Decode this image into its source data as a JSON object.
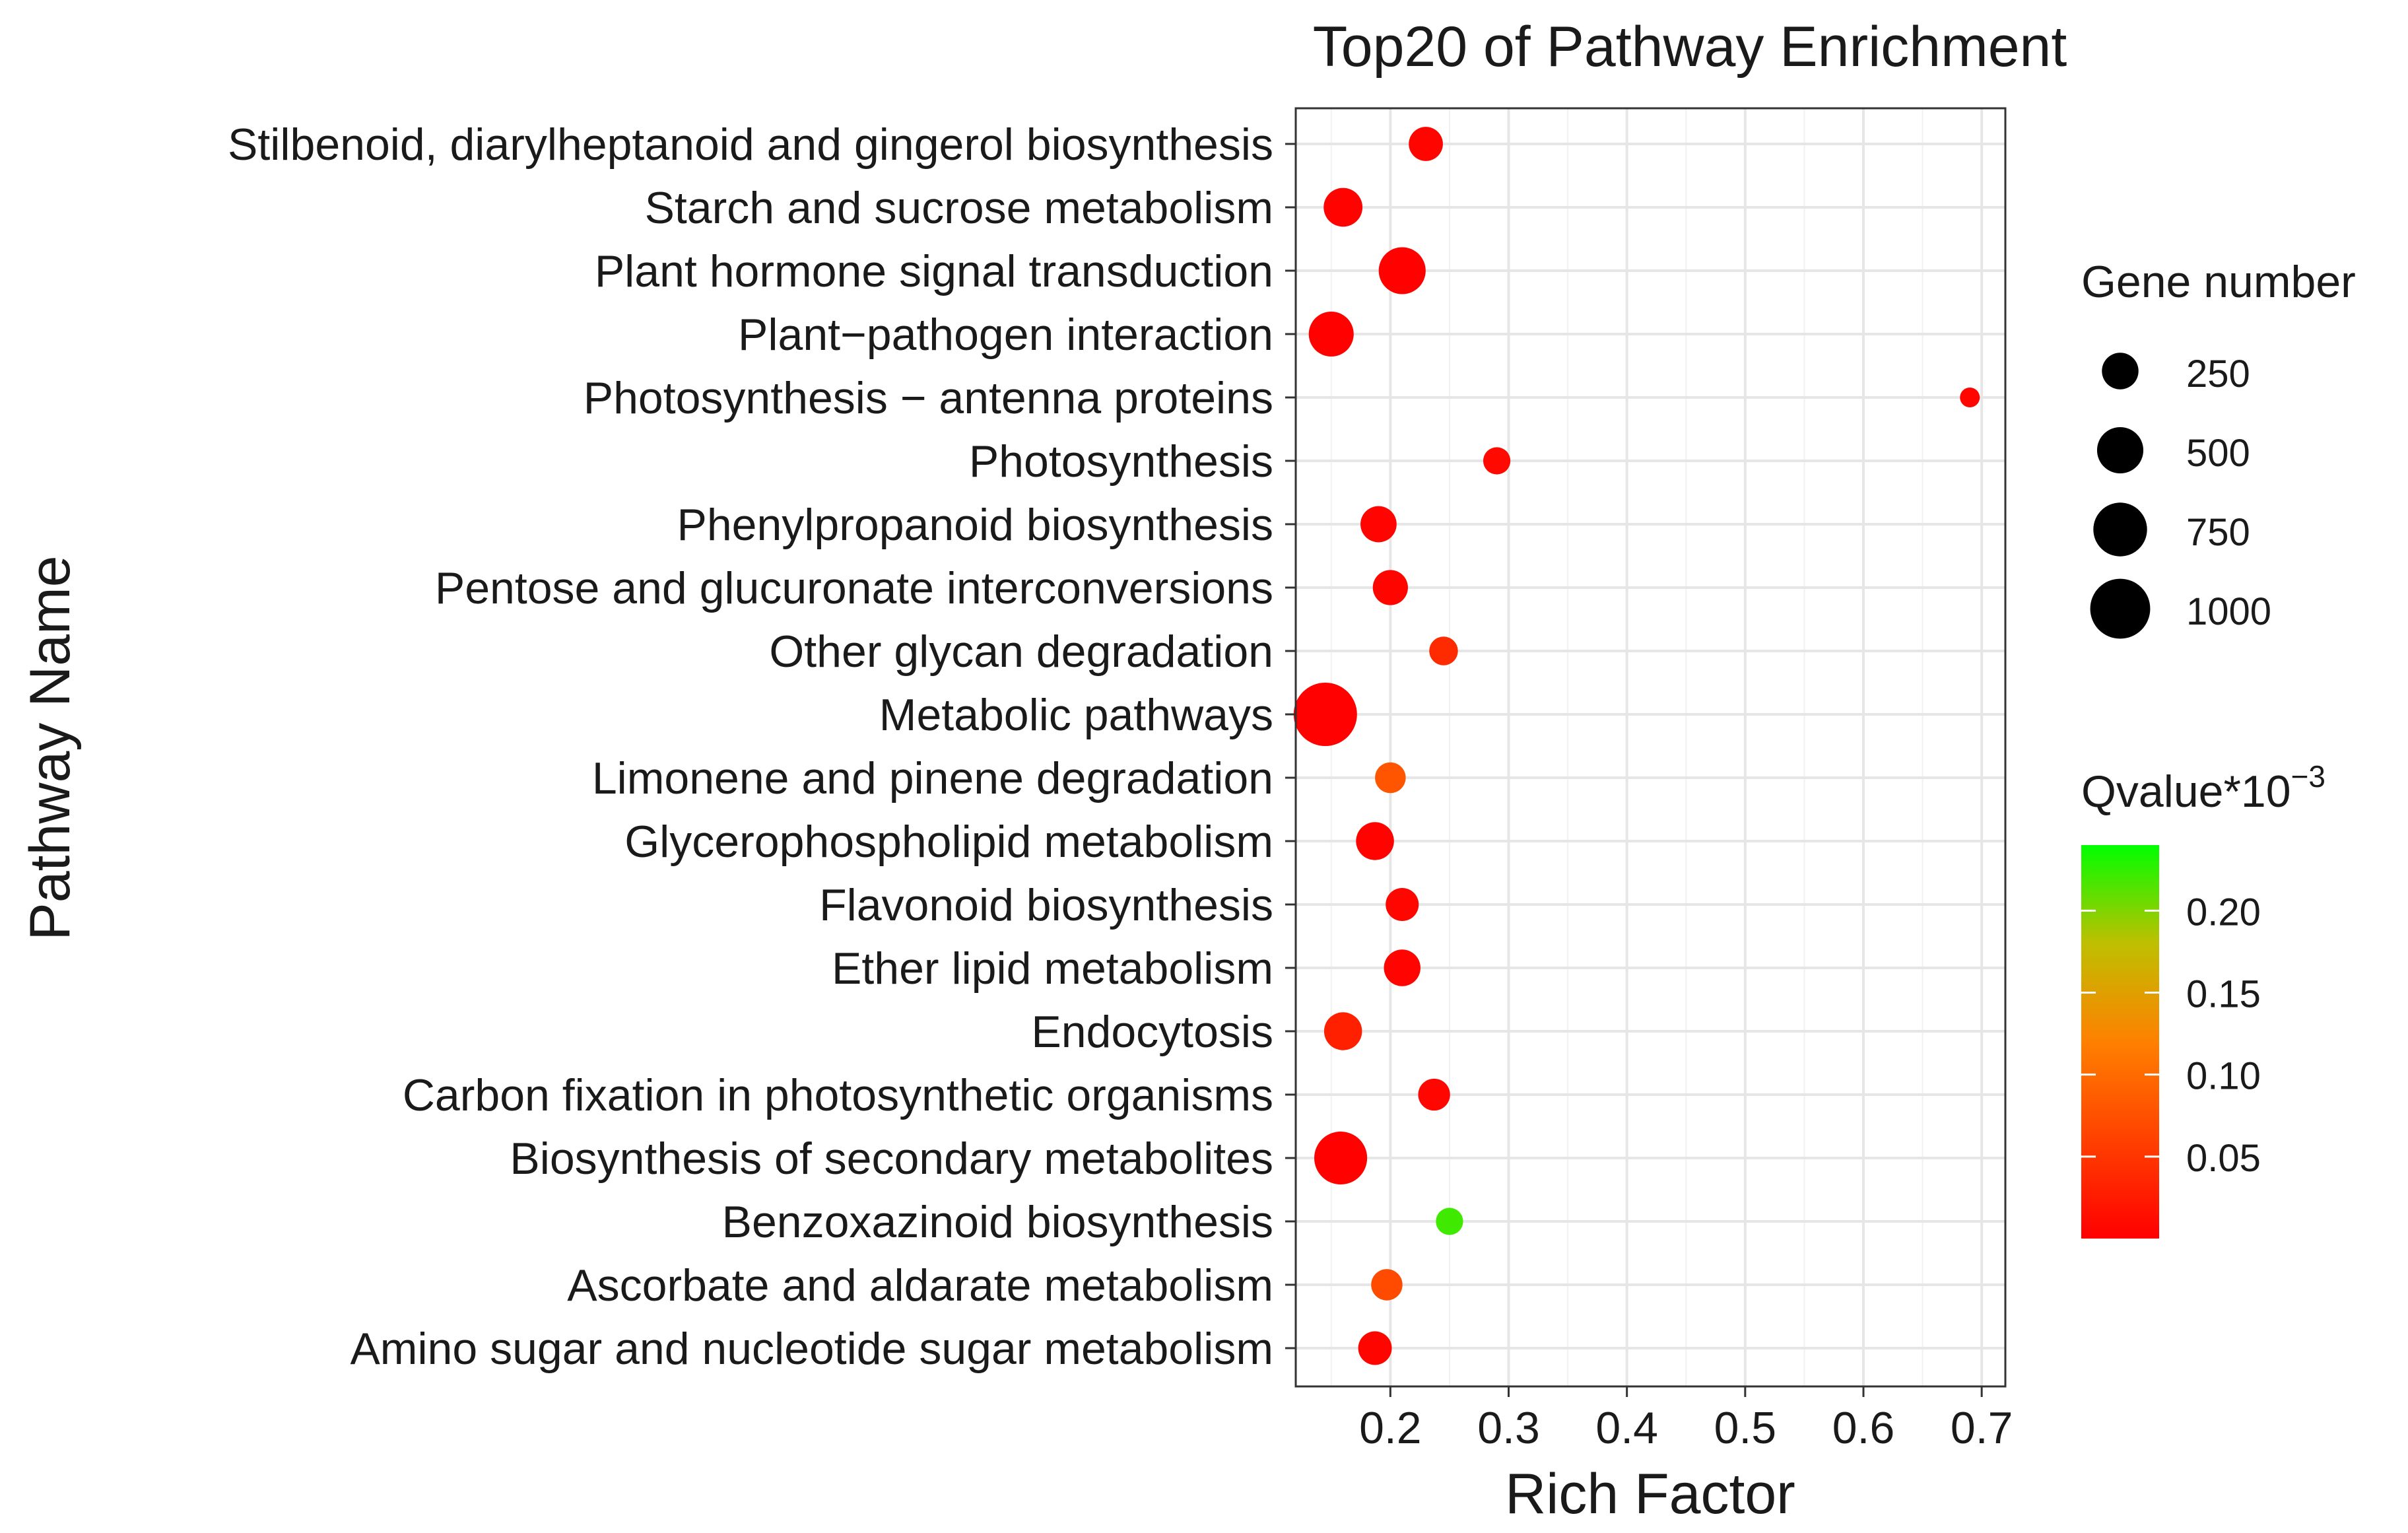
{
  "chart_data": {
    "type": "scatter",
    "title": "Top20 of Pathway Enrichment",
    "xlabel": "Rich Factor",
    "ylabel": "Pathway Name",
    "xlim": [
      0.12,
      0.72
    ],
    "xticks": [
      0.2,
      0.3,
      0.4,
      0.5,
      0.6,
      0.7
    ],
    "xtick_labels": [
      "0.2",
      "0.3",
      "0.4",
      "0.5",
      "0.6",
      "0.7"
    ],
    "grid": true,
    "points": [
      {
        "pathway": "Stilbenoid, diarylheptanoid and gingerol biosynthesis",
        "rich_factor": 0.23,
        "gene_number": 200,
        "qvalue": 0.005
      },
      {
        "pathway": "Starch and sucrose metabolism",
        "rich_factor": 0.16,
        "gene_number": 300,
        "qvalue": 0.003
      },
      {
        "pathway": "Plant hormone signal transduction",
        "rich_factor": 0.21,
        "gene_number": 520,
        "qvalue": 0.002
      },
      {
        "pathway": "Plant−pathogen interaction",
        "rich_factor": 0.15,
        "gene_number": 460,
        "qvalue": 0.002
      },
      {
        "pathway": "Photosynthesis − antenna proteins",
        "rich_factor": 0.69,
        "gene_number": 20,
        "qvalue": 0.006
      },
      {
        "pathway": "Photosynthesis",
        "rich_factor": 0.29,
        "gene_number": 90,
        "qvalue": 0.008
      },
      {
        "pathway": "Phenylpropanoid biosynthesis",
        "rich_factor": 0.19,
        "gene_number": 240,
        "qvalue": 0.004
      },
      {
        "pathway": "Pentose and glucuronate interconversions",
        "rich_factor": 0.2,
        "gene_number": 220,
        "qvalue": 0.005
      },
      {
        "pathway": "Other glycan degradation",
        "rich_factor": 0.245,
        "gene_number": 110,
        "qvalue": 0.04
      },
      {
        "pathway": "Metabolic pathways",
        "rich_factor": 0.145,
        "gene_number": 1150,
        "qvalue": 0.001
      },
      {
        "pathway": "Limonene and pinene degradation",
        "rich_factor": 0.2,
        "gene_number": 140,
        "qvalue": 0.08
      },
      {
        "pathway": "Glycerophospholipid metabolism",
        "rich_factor": 0.187,
        "gene_number": 280,
        "qvalue": 0.003
      },
      {
        "pathway": "Flavonoid biosynthesis",
        "rich_factor": 0.21,
        "gene_number": 180,
        "qvalue": 0.006
      },
      {
        "pathway": "Ether lipid metabolism",
        "rich_factor": 0.21,
        "gene_number": 250,
        "qvalue": 0.004
      },
      {
        "pathway": "Endocytosis",
        "rich_factor": 0.16,
        "gene_number": 280,
        "qvalue": 0.03
      },
      {
        "pathway": "Carbon fixation in photosynthetic organisms",
        "rich_factor": 0.237,
        "gene_number": 160,
        "qvalue": 0.007
      },
      {
        "pathway": "Biosynthesis of secondary metabolites",
        "rich_factor": 0.158,
        "gene_number": 720,
        "qvalue": 0.002
      },
      {
        "pathway": "Benzoxazinoid biosynthesis",
        "rich_factor": 0.25,
        "gene_number": 90,
        "qvalue": 0.22
      },
      {
        "pathway": "Ascorbate and aldarate metabolism",
        "rich_factor": 0.197,
        "gene_number": 150,
        "qvalue": 0.07
      },
      {
        "pathway": "Amino sugar and nucleotide sugar metabolism",
        "rich_factor": 0.187,
        "gene_number": 190,
        "qvalue": 0.005
      }
    ],
    "size_legend": {
      "title": "Gene number",
      "values": [
        250,
        500,
        750,
        1000
      ],
      "labels": [
        "250",
        "500",
        "750",
        "1000"
      ]
    },
    "color_legend": {
      "title_base": "Qvalue*10",
      "title_exponent": "−3",
      "range": [
        0.0,
        0.24
      ],
      "ticks": [
        0.05,
        0.1,
        0.15,
        0.2
      ],
      "tick_labels": [
        "0.05",
        "0.10",
        "0.15",
        "0.20"
      ],
      "low_color": "#ff0000",
      "high_color": "#00ff00"
    }
  }
}
